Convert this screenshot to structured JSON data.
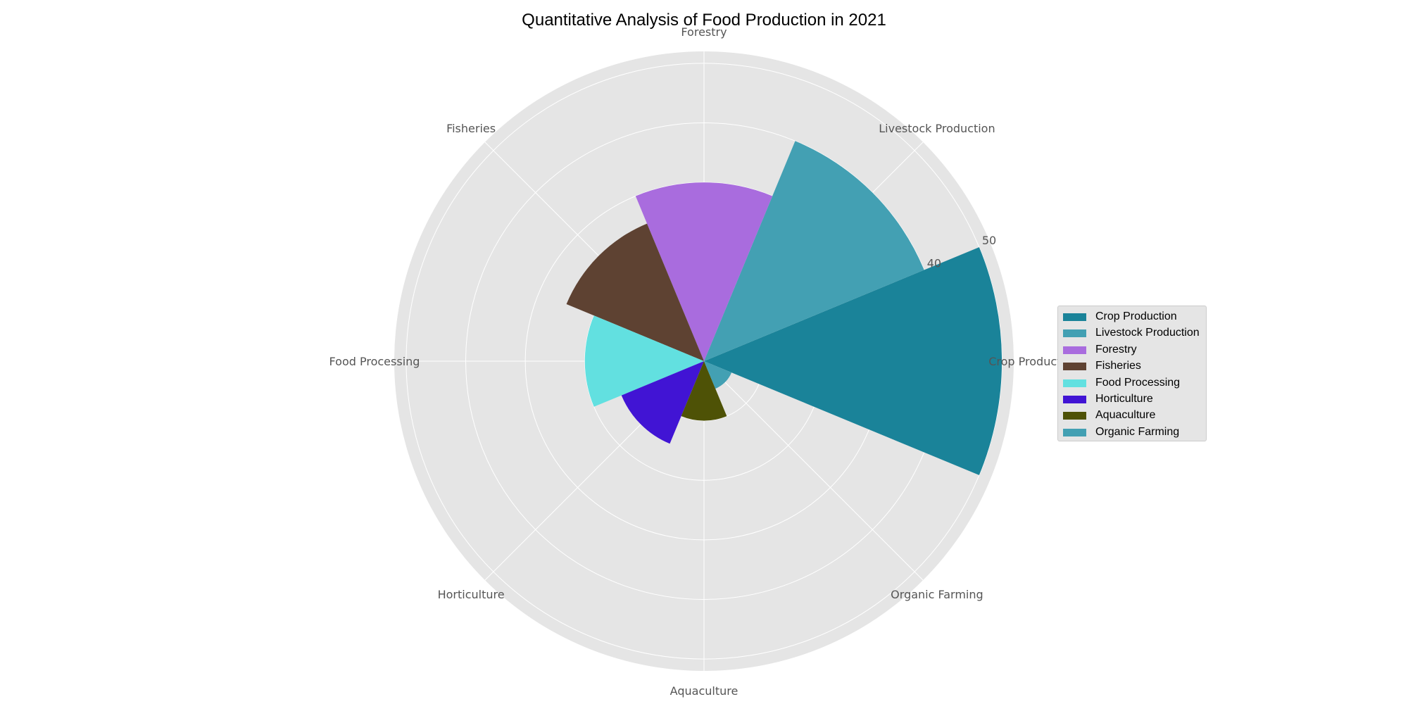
{
  "chart_data": {
    "type": "polar-bar",
    "title": "Quantitative Analysis of Food Production in 2021",
    "categories": [
      "Crop Production",
      "Livestock Production",
      "Forestry",
      "Fisheries",
      "Food Processing",
      "Horticulture",
      "Aquaculture",
      "Organic Farming"
    ],
    "values": [
      50,
      40,
      30,
      25,
      20,
      15,
      10,
      5
    ],
    "colors": [
      "#1a8399",
      "#43a0b3",
      "#a96cde",
      "#5e4232",
      "#62e0e0",
      "#4114d4",
      "#4e5206",
      "#43a0b3"
    ],
    "radial_ticks": [
      10,
      20,
      30,
      40,
      50
    ],
    "radial_tick_labels": [
      "",
      "",
      "",
      "40",
      "50"
    ],
    "rmax": 52,
    "grid": true,
    "legend_position": "right"
  }
}
